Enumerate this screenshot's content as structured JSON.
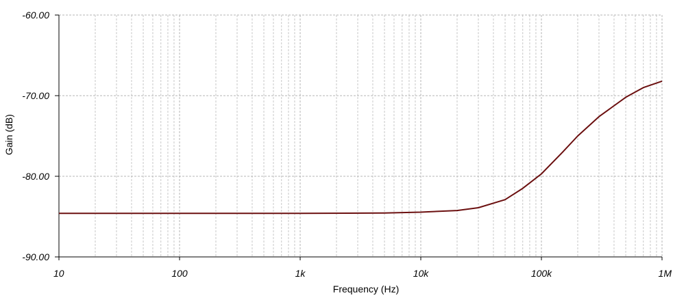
{
  "chart_data": {
    "type": "line",
    "xlabel": "Frequency (Hz)",
    "ylabel": "Gain (dB)",
    "x_scale": "log",
    "xlim": [
      10,
      1000000
    ],
    "ylim": [
      -90,
      -60
    ],
    "x_tick_values": [
      10,
      100,
      1000,
      10000,
      100000,
      1000000
    ],
    "x_tick_labels": [
      "10",
      "100",
      "1k",
      "10k",
      "100k",
      "1M"
    ],
    "y_tick_values": [
      -60,
      -70,
      -80,
      -90
    ],
    "y_tick_labels": [
      "-60.00",
      "-70.00",
      "-80.00",
      "-90.00"
    ],
    "grid": true,
    "series": [
      {
        "color": "#6b0f0f",
        "x": [
          10,
          100,
          1000,
          5000,
          10000,
          20000,
          30000,
          50000,
          70000,
          100000,
          150000,
          200000,
          300000,
          500000,
          700000,
          1000000
        ],
        "y": [
          -84.6,
          -84.6,
          -84.6,
          -84.55,
          -84.45,
          -84.25,
          -83.9,
          -82.9,
          -81.5,
          -79.7,
          -77.0,
          -75.0,
          -72.6,
          -70.2,
          -69.0,
          -68.2
        ]
      }
    ]
  }
}
